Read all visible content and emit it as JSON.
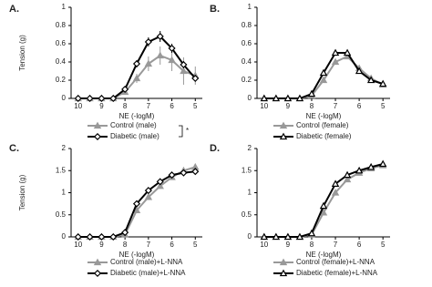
{
  "chart_data": [
    {
      "type": "line",
      "panel_label": "A.",
      "ylabel": "Tension (g)",
      "xlabel": "NE (-logM)",
      "annotation": "*",
      "x": [
        10,
        9.5,
        9,
        8.5,
        8,
        7.5,
        7,
        6.5,
        6,
        5.5,
        5
      ],
      "xlim": [
        10.3,
        4.7
      ],
      "xticks": [
        10,
        9,
        8,
        7,
        6,
        5
      ],
      "ylim": [
        0,
        1
      ],
      "yticks": [
        0,
        0.2,
        0.4,
        0.6,
        0.8,
        1
      ],
      "series": [
        {
          "name": "Control (male)",
          "color": "#999999",
          "marker": "triangle",
          "marker_fill": "#999999",
          "values": [
            0,
            0,
            0,
            0,
            0.07,
            0.22,
            0.38,
            0.47,
            0.42,
            0.3,
            0.25
          ],
          "errors": [
            0,
            0,
            0,
            0,
            0.02,
            0.05,
            0.08,
            0.1,
            0.12,
            0.15,
            0.1
          ]
        },
        {
          "name": "Diabetic (male)",
          "color": "#000000",
          "marker": "diamond",
          "marker_fill": "#ffffff",
          "values": [
            0,
            0,
            0,
            0,
            0.1,
            0.38,
            0.62,
            0.68,
            0.55,
            0.37,
            0.22
          ],
          "errors": [
            0,
            0,
            0,
            0,
            0.02,
            0.04,
            0.05,
            0.06,
            0.05,
            0.04,
            0.03
          ]
        }
      ]
    },
    {
      "type": "line",
      "panel_label": "B.",
      "xlabel": "NE (-logM)",
      "x": [
        10,
        9.5,
        9,
        8.5,
        8,
        7.5,
        7,
        6.5,
        6,
        5.5,
        5
      ],
      "xlim": [
        10.3,
        4.7
      ],
      "xticks": [
        10,
        9,
        8,
        7,
        6,
        5
      ],
      "ylim": [
        0,
        1
      ],
      "yticks": [
        0,
        0.2,
        0.4,
        0.6,
        0.8,
        1
      ],
      "series": [
        {
          "name": "Control (female)",
          "color": "#999999",
          "marker": "triangle",
          "marker_fill": "#999999",
          "values": [
            0,
            0,
            0,
            0,
            0.03,
            0.2,
            0.4,
            0.46,
            0.33,
            0.22,
            0.15
          ]
        },
        {
          "name": "Diabetic (female)",
          "color": "#000000",
          "marker": "triangle",
          "marker_fill": "#ffffff",
          "values": [
            0,
            0,
            0,
            0,
            0.05,
            0.28,
            0.5,
            0.5,
            0.3,
            0.2,
            0.16
          ]
        }
      ]
    },
    {
      "type": "line",
      "panel_label": "C.",
      "ylabel": "Tension (g)",
      "xlabel": "NE (-logM)",
      "x": [
        10,
        9.5,
        9,
        8.5,
        8,
        7.5,
        7,
        6.5,
        6,
        5.5,
        5
      ],
      "xlim": [
        10.3,
        4.7
      ],
      "xticks": [
        10,
        9,
        8,
        7,
        6,
        5
      ],
      "ylim": [
        0,
        2
      ],
      "yticks": [
        0,
        0.5,
        1,
        1.5,
        2
      ],
      "series": [
        {
          "name": "Control (male)+L-NNA",
          "color": "#999999",
          "marker": "triangle",
          "marker_fill": "#999999",
          "values": [
            0,
            0,
            0,
            0,
            0.05,
            0.6,
            0.9,
            1.15,
            1.35,
            1.5,
            1.58
          ]
        },
        {
          "name": "Diabetic (male)+L-NNA",
          "color": "#000000",
          "marker": "diamond",
          "marker_fill": "#ffffff",
          "values": [
            0,
            0,
            0,
            0,
            0.1,
            0.75,
            1.05,
            1.25,
            1.4,
            1.45,
            1.48
          ]
        }
      ]
    },
    {
      "type": "line",
      "panel_label": "D.",
      "xlabel": "NE (-logM)",
      "x": [
        10,
        9.5,
        9,
        8.5,
        8,
        7.5,
        7,
        6.5,
        6,
        5.5,
        5
      ],
      "xlim": [
        10.3,
        4.7
      ],
      "xticks": [
        10,
        9,
        8,
        7,
        6,
        5
      ],
      "ylim": [
        0,
        2
      ],
      "yticks": [
        0,
        0.5,
        1,
        1.5,
        2
      ],
      "series": [
        {
          "name": "Control (female)+L-NNA",
          "color": "#999999",
          "marker": "triangle",
          "marker_fill": "#999999",
          "values": [
            0,
            0,
            0,
            0,
            0.05,
            0.55,
            1.0,
            1.3,
            1.45,
            1.55,
            1.62
          ]
        },
        {
          "name": "Diabetic (female)+L-NNA",
          "color": "#000000",
          "marker": "triangle",
          "marker_fill": "#ffffff",
          "values": [
            0,
            0,
            0,
            0,
            0.08,
            0.7,
            1.2,
            1.4,
            1.5,
            1.58,
            1.65
          ]
        }
      ]
    }
  ]
}
